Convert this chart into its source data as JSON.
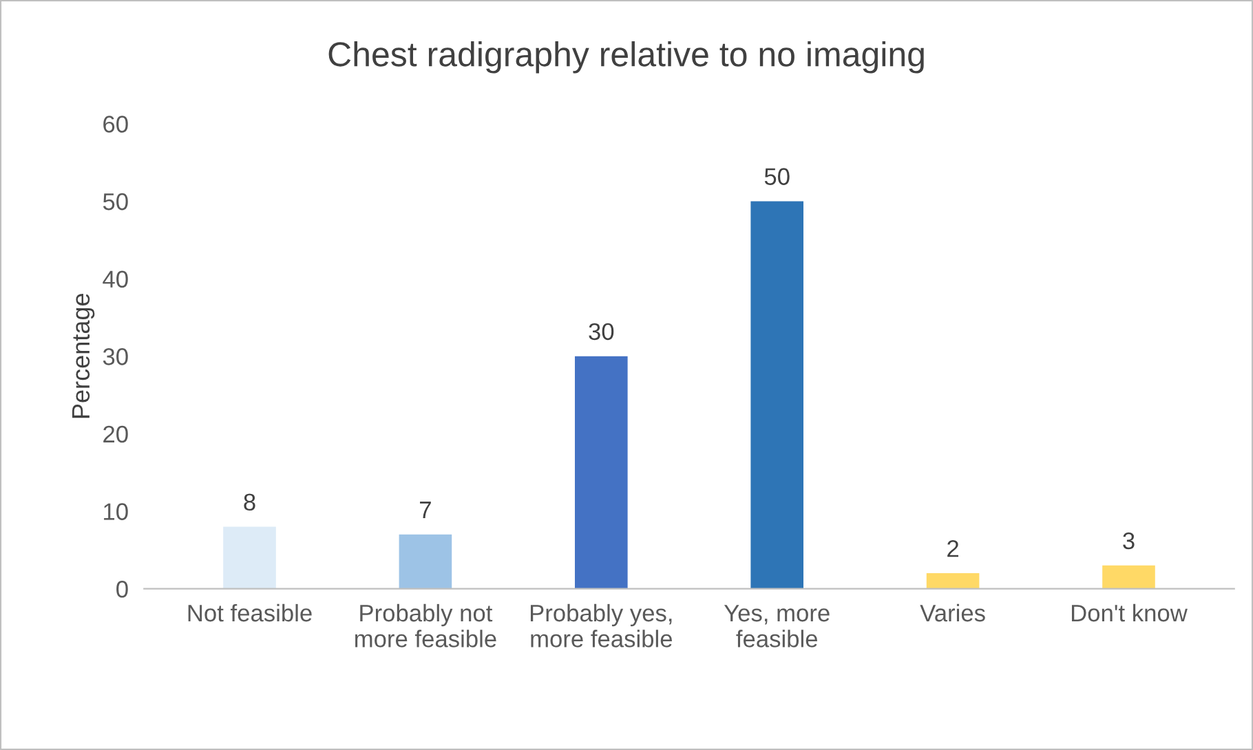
{
  "chart_data": {
    "type": "bar",
    "title": "Chest radigraphy relative to no imaging",
    "ylabel": "Percentage",
    "categories": [
      "Not feasible",
      "Probably not\nmore feasible",
      "Probably yes,\nmore feasible",
      "Yes, more\nfeasible",
      "Varies",
      "Don't know"
    ],
    "values": [
      8,
      7,
      30,
      50,
      2,
      3
    ],
    "colors": [
      "#ddebf7",
      "#9dc3e6",
      "#4472c4",
      "#2e75b6",
      "#ffd966",
      "#ffd966"
    ],
    "ylim": [
      0,
      60
    ],
    "yticks": [
      0,
      10,
      20,
      30,
      40,
      50,
      60
    ],
    "grid": false,
    "data_labels": true
  }
}
